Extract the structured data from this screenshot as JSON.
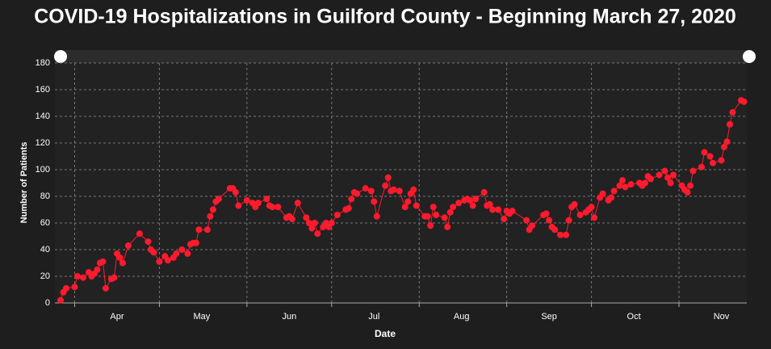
{
  "chart_data": {
    "type": "line",
    "title": "COVID-19 Hospitalizations in Guilford County - Beginning March 27, 2020",
    "xlabel": "Date",
    "ylabel": "Number of Patients",
    "x": [
      "2020-03-27",
      "2020-03-28",
      "2020-03-29",
      "2020-04-01",
      "2020-04-02",
      "2020-04-04",
      "2020-04-06",
      "2020-04-07",
      "2020-04-08",
      "2020-04-09",
      "2020-04-10",
      "2020-04-11",
      "2020-04-12",
      "2020-04-14",
      "2020-04-15",
      "2020-04-16",
      "2020-04-17",
      "2020-04-18",
      "2020-04-20",
      "2020-04-24",
      "2020-04-27",
      "2020-04-28",
      "2020-04-29",
      "2020-05-01",
      "2020-05-03",
      "2020-05-04",
      "2020-05-06",
      "2020-05-07",
      "2020-05-09",
      "2020-05-11",
      "2020-05-12",
      "2020-05-13",
      "2020-05-14",
      "2020-05-15",
      "2020-05-18",
      "2020-05-19",
      "2020-05-20",
      "2020-05-21",
      "2020-05-22",
      "2020-05-26",
      "2020-05-27",
      "2020-05-28",
      "2020-05-29",
      "2020-06-01",
      "2020-06-03",
      "2020-06-04",
      "2020-06-05",
      "2020-06-08",
      "2020-06-09",
      "2020-06-10",
      "2020-06-12",
      "2020-06-15",
      "2020-06-16",
      "2020-06-17",
      "2020-06-19",
      "2020-06-22",
      "2020-06-23",
      "2020-06-24",
      "2020-06-25",
      "2020-06-26",
      "2020-06-28",
      "2020-06-29",
      "2020-06-30",
      "2020-07-01",
      "2020-07-03",
      "2020-07-06",
      "2020-07-07",
      "2020-07-08",
      "2020-07-09",
      "2020-07-10",
      "2020-07-13",
      "2020-07-15",
      "2020-07-16",
      "2020-07-17",
      "2020-07-20",
      "2020-07-21",
      "2020-07-22",
      "2020-07-23",
      "2020-07-25",
      "2020-07-27",
      "2020-07-28",
      "2020-07-29",
      "2020-07-30",
      "2020-07-31",
      "2020-08-03",
      "2020-08-04",
      "2020-08-05",
      "2020-08-06",
      "2020-08-07",
      "2020-08-10",
      "2020-08-11",
      "2020-08-12",
      "2020-08-13",
      "2020-08-15",
      "2020-08-17",
      "2020-08-18",
      "2020-08-19",
      "2020-08-20",
      "2020-08-21",
      "2020-08-24",
      "2020-08-25",
      "2020-08-26",
      "2020-08-27",
      "2020-08-29",
      "2020-08-31",
      "2020-09-01",
      "2020-09-02",
      "2020-09-03",
      "2020-09-08",
      "2020-09-09",
      "2020-09-10",
      "2020-09-14",
      "2020-09-15",
      "2020-09-16",
      "2020-09-17",
      "2020-09-18",
      "2020-09-20",
      "2020-09-22",
      "2020-09-23",
      "2020-09-24",
      "2020-09-25",
      "2020-09-27",
      "2020-09-29",
      "2020-09-30",
      "2020-10-01",
      "2020-10-02",
      "2020-10-04",
      "2020-10-05",
      "2020-10-07",
      "2020-10-08",
      "2020-10-09",
      "2020-10-11",
      "2020-10-12",
      "2020-10-13",
      "2020-10-15",
      "2020-10-18",
      "2020-10-19",
      "2020-10-20",
      "2020-10-21",
      "2020-10-22",
      "2020-10-25",
      "2020-10-27",
      "2020-10-28",
      "2020-10-29",
      "2020-10-30",
      "2020-11-02",
      "2020-11-03",
      "2020-11-04",
      "2020-11-05",
      "2020-11-06",
      "2020-11-09",
      "2020-11-10",
      "2020-11-12",
      "2020-11-13",
      "2020-11-16",
      "2020-11-17",
      "2020-11-18",
      "2020-11-19",
      "2020-11-20",
      "2020-11-23",
      "2020-11-24"
    ],
    "series": [
      {
        "name": "Number of Patients",
        "color": "#ff1a2e",
        "values": [
          2,
          8,
          11,
          12,
          20,
          19,
          23,
          20,
          22,
          25,
          30,
          31,
          11,
          18,
          19,
          37,
          34,
          30,
          43,
          52,
          46,
          40,
          38,
          31,
          35,
          32,
          34,
          37,
          40,
          37,
          44,
          45,
          45,
          55,
          55,
          65,
          70,
          76,
          78,
          86,
          86,
          83,
          73,
          77,
          75,
          72,
          75,
          78,
          73,
          72,
          72,
          64,
          65,
          63,
          75,
          64,
          60,
          56,
          60,
          52,
          57,
          60,
          57,
          60,
          66,
          70,
          71,
          78,
          83,
          82,
          86,
          84,
          76,
          65,
          88,
          94,
          84,
          85,
          84,
          72,
          76,
          82,
          85,
          73,
          65,
          65,
          58,
          72,
          66,
          64,
          57,
          68,
          72,
          75,
          77,
          78,
          77,
          73,
          78,
          83,
          73,
          74,
          70,
          70,
          63,
          69,
          67,
          69,
          62,
          55,
          58,
          66,
          67,
          62,
          57,
          55,
          51,
          51,
          62,
          72,
          74,
          66,
          68,
          70,
          72,
          64,
          79,
          82,
          77,
          79,
          84,
          88,
          92,
          87,
          89,
          90,
          88,
          90,
          95,
          93,
          96,
          99,
          94,
          90,
          96,
          88,
          85,
          83,
          88,
          99,
          102,
          113,
          110,
          105,
          107,
          117,
          121,
          134,
          143,
          152,
          151
        ]
      }
    ],
    "xlim": [
      "2020-03-25",
      "2020-11-25"
    ],
    "xticks": [
      {
        "value": "2020-04-01",
        "label": "Apr"
      },
      {
        "value": "2020-05-01",
        "label": "May"
      },
      {
        "value": "2020-06-01",
        "label": "Jun"
      },
      {
        "value": "2020-07-01",
        "label": "Jul"
      },
      {
        "value": "2020-08-01",
        "label": "Aug"
      },
      {
        "value": "2020-09-01",
        "label": "Sep"
      },
      {
        "value": "2020-10-01",
        "label": "Oct"
      },
      {
        "value": "2020-11-01",
        "label": "Nov"
      }
    ],
    "ylim": [
      0,
      180
    ],
    "yticks": [
      0,
      20,
      40,
      60,
      80,
      100,
      120,
      140,
      160,
      180
    ],
    "grid": true
  }
}
